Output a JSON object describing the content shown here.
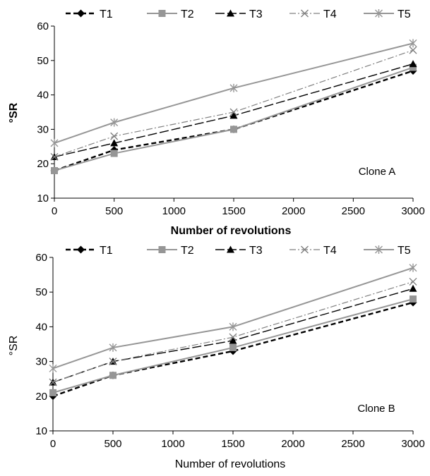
{
  "chart_data": [
    {
      "type": "line",
      "ylabel": "°SR",
      "xlabel": "Number of revolutions",
      "xlabel_bold": true,
      "annotation": "Clone A",
      "x": [
        0,
        500,
        1500,
        3000
      ],
      "xticks": [
        "0",
        "500",
        "1000",
        "1500",
        "2000",
        "2500",
        "3000"
      ],
      "yticks": [
        "10",
        "20",
        "30",
        "40",
        "50",
        "60"
      ],
      "xlim": [
        0,
        3000
      ],
      "ylim": [
        10,
        60
      ],
      "legend_position": "top",
      "series": [
        {
          "name": "T1",
          "values": [
            18,
            24,
            30,
            47
          ],
          "color": "#000000",
          "dash": "7,4",
          "width": 2.4,
          "marker": "diamond"
        },
        {
          "name": "T2",
          "values": [
            18,
            23,
            30,
            48
          ],
          "color": "#969696",
          "dash": "",
          "width": 2,
          "marker": "square"
        },
        {
          "name": "T3",
          "values": [
            22,
            26,
            34,
            49
          ],
          "color": "#000000",
          "dash": "13,4",
          "width": 1.4,
          "marker": "triangle"
        },
        {
          "name": "T4",
          "values": [
            22,
            28,
            35,
            53
          ],
          "color": "#808080",
          "dash": "9,3,2,3",
          "width": 1.2,
          "marker": "x"
        },
        {
          "name": "T5",
          "values": [
            26,
            32,
            42,
            55
          ],
          "color": "#969696",
          "dash": "",
          "width": 2,
          "marker": "star"
        }
      ]
    },
    {
      "type": "line",
      "ylabel": "°SR",
      "xlabel": "Number of revolutions",
      "xlabel_bold": false,
      "annotation": "Clone B",
      "x": [
        0,
        500,
        1500,
        3000
      ],
      "xticks": [
        "0",
        "500",
        "1000",
        "1500",
        "2000",
        "2500",
        "3000"
      ],
      "yticks": [
        "10",
        "20",
        "30",
        "40",
        "50",
        "60"
      ],
      "xlim": [
        0,
        3000
      ],
      "ylim": [
        10,
        60
      ],
      "legend_position": "top",
      "series": [
        {
          "name": "T1",
          "values": [
            20,
            26,
            33,
            47
          ],
          "color": "#000000",
          "dash": "7,4",
          "width": 2.4,
          "marker": "diamond"
        },
        {
          "name": "T2",
          "values": [
            21,
            26,
            34,
            48
          ],
          "color": "#969696",
          "dash": "",
          "width": 2,
          "marker": "square"
        },
        {
          "name": "T3",
          "values": [
            24,
            30,
            36,
            51
          ],
          "color": "#000000",
          "dash": "13,4",
          "width": 1.4,
          "marker": "triangle"
        },
        {
          "name": "T4",
          "values": [
            24,
            30,
            37,
            53
          ],
          "color": "#808080",
          "dash": "9,3,2,3",
          "width": 1.2,
          "marker": "x"
        },
        {
          "name": "T5",
          "values": [
            28,
            34,
            40,
            57
          ],
          "color": "#969696",
          "dash": "",
          "width": 2,
          "marker": "star"
        }
      ]
    }
  ]
}
